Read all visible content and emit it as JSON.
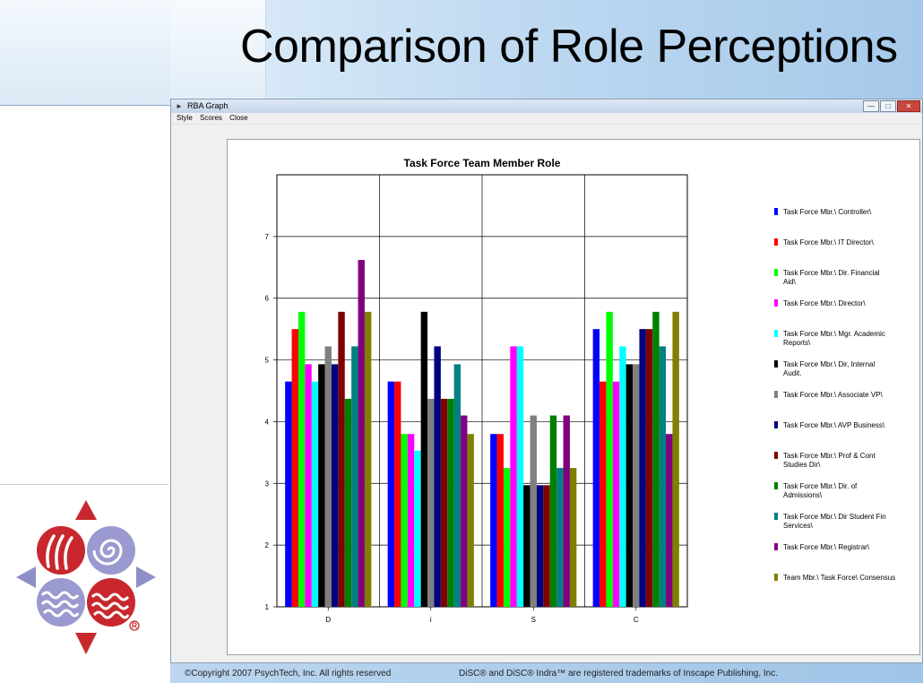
{
  "slide": {
    "title": "Comparison of Role Perceptions",
    "copyright": "©Copyright 2007  PsychTech, Inc. All rights reserved",
    "trademark": "DiSC® and DiSC® Indra™ are registered trademarks of Inscape Publishing,  Inc."
  },
  "window": {
    "title": "RBA Graph",
    "menu": [
      "Style",
      "Scores",
      "Close"
    ]
  },
  "chart_data": {
    "type": "bar",
    "title": "Task Force Team Member Role",
    "xlabel": "",
    "ylabel": "",
    "ylim": [
      1,
      8
    ],
    "yticks": [
      1,
      2,
      3,
      4,
      5,
      6,
      7
    ],
    "grid": true,
    "legend_position": "right",
    "categories": [
      "D",
      "i",
      "S",
      "C"
    ],
    "series": [
      {
        "name": "Task Force Mbr.\\ Controller\\",
        "color": "#0000ff",
        "values": [
          4.65,
          4.65,
          3.8,
          5.5
        ]
      },
      {
        "name": "Task Force Mbr.\\ IT Director\\",
        "color": "#ff0000",
        "values": [
          5.5,
          4.65,
          3.8,
          4.65
        ]
      },
      {
        "name": "Task Force Mbr.\\ Dir. Financial Aid\\",
        "color": "#00ff00",
        "values": [
          5.78,
          3.8,
          3.25,
          5.78
        ]
      },
      {
        "name": "Task Force Mbr.\\ Director\\",
        "color": "#ff00ff",
        "values": [
          4.93,
          3.8,
          5.22,
          4.65
        ]
      },
      {
        "name": "Task Force Mbr.\\ Mgr. Academic Reports\\",
        "color": "#00ffff",
        "values": [
          4.65,
          3.53,
          5.22,
          5.22
        ]
      },
      {
        "name": "Task Force Mbr.\\ Dir, Internal Audit.",
        "color": "#000000",
        "values": [
          4.93,
          5.78,
          2.97,
          4.93
        ]
      },
      {
        "name": "Task Force Mbr.\\ Associate VP\\",
        "color": "#808080",
        "values": [
          5.22,
          4.37,
          4.1,
          4.93
        ]
      },
      {
        "name": "Task Force Mbr.\\ AVP Business\\",
        "color": "#000080",
        "values": [
          4.93,
          5.22,
          2.97,
          5.5
        ]
      },
      {
        "name": "Task Force Mbr.\\ Prof & Cont Studies Dir\\",
        "color": "#800000",
        "values": [
          5.78,
          4.37,
          2.97,
          5.5
        ]
      },
      {
        "name": "Task Force Mbr.\\ Dir. of Admissions\\",
        "color": "#008000",
        "values": [
          4.37,
          4.37,
          4.1,
          5.78
        ]
      },
      {
        "name": "Task Force Mbr.\\ Dir Student Fin Services\\",
        "color": "#008080",
        "values": [
          5.22,
          4.93,
          3.25,
          5.22
        ]
      },
      {
        "name": "Task Force Mbr.\\  Registrar\\",
        "color": "#800080",
        "values": [
          6.62,
          4.1,
          4.1,
          3.8
        ]
      },
      {
        "name": "Team Mbr.\\ Task Force\\ Consensus",
        "color": "#808000",
        "values": [
          5.78,
          3.8,
          3.25,
          5.78
        ]
      }
    ]
  }
}
